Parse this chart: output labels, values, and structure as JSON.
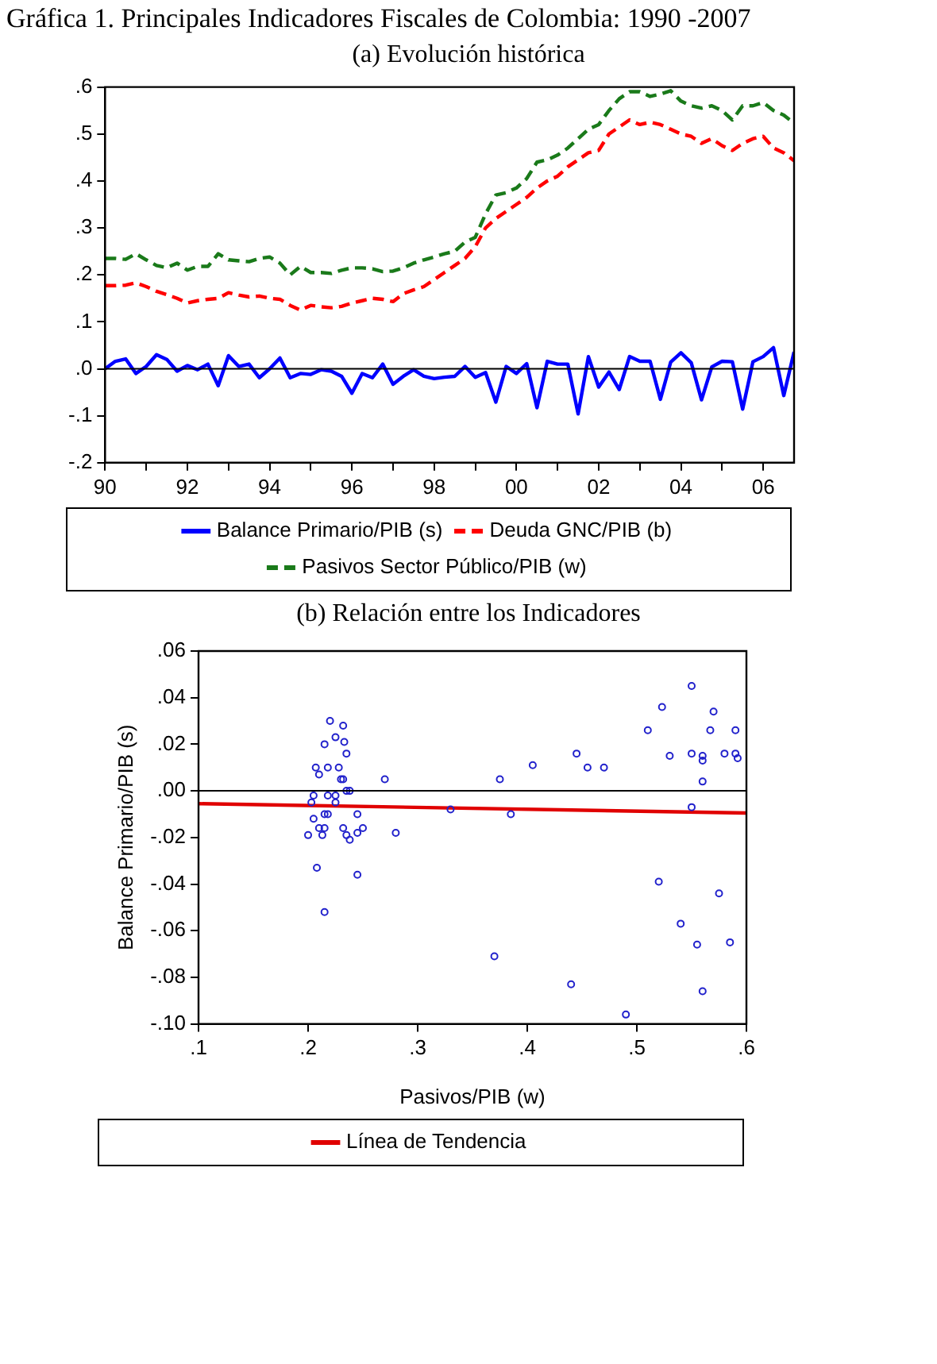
{
  "chart_data": [
    {
      "type": "line",
      "title": "Gráfica 1. Principales Indicadores Fiscales de Colombia: 1990 -2007",
      "subtitle": "(a)  Evolución histórica",
      "xlim": [
        1990,
        2006.75
      ],
      "xticks": [
        {
          "value": 1990,
          "label": "90"
        },
        {
          "value": 1991,
          "label": null
        },
        {
          "value": 1992,
          "label": "92"
        },
        {
          "value": 1993,
          "label": null
        },
        {
          "value": 1994,
          "label": "94"
        },
        {
          "value": 1995,
          "label": null
        },
        {
          "value": 1996,
          "label": "96"
        },
        {
          "value": 1997,
          "label": null
        },
        {
          "value": 1998,
          "label": "98"
        },
        {
          "value": 1999,
          "label": null
        },
        {
          "value": 2000,
          "label": "00"
        },
        {
          "value": 2001,
          "label": null
        },
        {
          "value": 2002,
          "label": "02"
        },
        {
          "value": 2003,
          "label": null
        },
        {
          "value": 2004,
          "label": "04"
        },
        {
          "value": 2005,
          "label": null
        },
        {
          "value": 2006,
          "label": "06"
        }
      ],
      "ylim": [
        -0.2,
        0.6
      ],
      "yticks": [
        {
          "value": -0.2,
          "label": "-.2"
        },
        {
          "value": -0.1,
          "label": "-.1"
        },
        {
          "value": 0,
          "label": ".0"
        },
        {
          "value": 0.1,
          "label": ".1"
        },
        {
          "value": 0.2,
          "label": ".2"
        },
        {
          "value": 0.3,
          "label": ".3"
        },
        {
          "value": 0.4,
          "label": ".4"
        },
        {
          "value": 0.5,
          "label": ".5"
        },
        {
          "value": 0.6,
          "label": ".6"
        }
      ],
      "grid": false,
      "legend": "bottom",
      "marker": "none",
      "ref_lines": [
        {
          "axis": "y",
          "value": 0,
          "color": "#000000"
        }
      ],
      "x": [
        1990,
        1990.25,
        1990.5,
        1990.75,
        1991,
        1991.25,
        1991.5,
        1991.75,
        1992,
        1992.25,
        1992.5,
        1992.75,
        1993,
        1993.25,
        1993.5,
        1993.75,
        1994,
        1994.25,
        1994.5,
        1994.75,
        1995,
        1995.25,
        1995.5,
        1995.75,
        1996,
        1996.25,
        1996.5,
        1996.75,
        1997,
        1997.25,
        1997.5,
        1997.75,
        1998,
        1998.25,
        1998.5,
        1998.75,
        1999,
        1999.25,
        1999.5,
        1999.75,
        2000,
        2000.25,
        2000.5,
        2000.75,
        2001,
        2001.25,
        2001.5,
        2001.75,
        2002,
        2002.25,
        2002.5,
        2002.75,
        2003,
        2003.25,
        2003.5,
        2003.75,
        2004,
        2004.25,
        2004.5,
        2004.75,
        2005,
        2005.25,
        2005.5,
        2005.75,
        2006,
        2006.25,
        2006.5,
        2006.75
      ],
      "series": [
        {
          "name": "Balance Primario/PIB (s)",
          "color": "#0000ff",
          "line_style": "solid",
          "values": [
            0,
            0.016,
            0.021,
            -0.01,
            0.005,
            0.03,
            0.02,
            -0.005,
            0.007,
            -0.002,
            0.01,
            -0.036,
            0.028,
            0.005,
            0.01,
            -0.019,
            0,
            0.023,
            -0.019,
            -0.01,
            -0.012,
            -0.002,
            -0.005,
            -0.016,
            -0.052,
            -0.01,
            -0.019,
            0.01,
            -0.033,
            -0.016,
            -0.002,
            -0.016,
            -0.021,
            -0.018,
            -0.016,
            0.005,
            -0.018,
            -0.008,
            -0.071,
            0.005,
            -0.01,
            0.011,
            -0.083,
            0.016,
            0.01,
            0.01,
            -0.096,
            0.026,
            -0.039,
            -0.007,
            -0.044,
            0.026,
            0.016,
            0.016,
            -0.065,
            0.014,
            0.034,
            0.013,
            -0.066,
            0.004,
            0.016,
            0.015,
            -0.086,
            0.015,
            0.026,
            0.045,
            -0.057,
            0.036
          ]
        },
        {
          "name": "Deuda GNC/PIB (b)",
          "color": "#ff0000",
          "line_style": "dashed",
          "values": [
            0.177,
            0.177,
            0.178,
            0.183,
            0.175,
            0.165,
            0.158,
            0.15,
            0.14,
            0.145,
            0.148,
            0.15,
            0.162,
            0.157,
            0.153,
            0.155,
            0.15,
            0.148,
            0.135,
            0.125,
            0.135,
            0.132,
            0.13,
            0.133,
            0.14,
            0.145,
            0.15,
            0.148,
            0.143,
            0.16,
            0.168,
            0.175,
            0.19,
            0.205,
            0.22,
            0.235,
            0.26,
            0.3,
            0.32,
            0.335,
            0.35,
            0.365,
            0.385,
            0.4,
            0.41,
            0.43,
            0.445,
            0.46,
            0.465,
            0.5,
            0.515,
            0.53,
            0.52,
            0.525,
            0.52,
            0.51,
            0.5,
            0.495,
            0.48,
            0.49,
            0.475,
            0.465,
            0.48,
            0.49,
            0.495,
            0.47,
            0.46,
            0.443
          ]
        },
        {
          "name": "Pasivos Sector Público/PIB (w)",
          "color": "#1a7a1a",
          "line_style": "dashed",
          "values": [
            0.235,
            0.235,
            0.233,
            0.245,
            0.232,
            0.22,
            0.215,
            0.225,
            0.21,
            0.218,
            0.218,
            0.245,
            0.232,
            0.23,
            0.228,
            0.235,
            0.238,
            0.225,
            0.2,
            0.218,
            0.205,
            0.205,
            0.203,
            0.21,
            0.215,
            0.215,
            0.213,
            0.207,
            0.208,
            0.215,
            0.225,
            0.232,
            0.238,
            0.245,
            0.25,
            0.27,
            0.28,
            0.33,
            0.37,
            0.375,
            0.385,
            0.405,
            0.44,
            0.445,
            0.455,
            0.47,
            0.49,
            0.51,
            0.52,
            0.55,
            0.575,
            0.59,
            0.59,
            0.58,
            0.585,
            0.592,
            0.57,
            0.56,
            0.555,
            0.56,
            0.55,
            0.53,
            0.56,
            0.56,
            0.567,
            0.55,
            0.54,
            0.523
          ]
        }
      ]
    },
    {
      "type": "scatter",
      "title": "(b) Relación entre los Indicadores",
      "xlabel": "Pasivos/PIB (w)",
      "ylabel": "Balance Primario/PIB (s)",
      "xlim": [
        0.1,
        0.6
      ],
      "xticks": [
        {
          "value": 0.1,
          "label": ".1"
        },
        {
          "value": 0.2,
          "label": ".2"
        },
        {
          "value": 0.3,
          "label": ".3"
        },
        {
          "value": 0.4,
          "label": ".4"
        },
        {
          "value": 0.5,
          "label": ".5"
        },
        {
          "value": 0.6,
          "label": ".6"
        }
      ],
      "ylim": [
        -0.1,
        0.06
      ],
      "yticks": [
        {
          "value": -0.1,
          "label": "-.10"
        },
        {
          "value": -0.08,
          "label": "-.08"
        },
        {
          "value": -0.06,
          "label": "-.06"
        },
        {
          "value": -0.04,
          "label": "-.04"
        },
        {
          "value": -0.02,
          "label": "-.02"
        },
        {
          "value": 0,
          "label": ".00"
        },
        {
          "value": 0.02,
          "label": ".02"
        },
        {
          "value": 0.04,
          "label": ".04"
        },
        {
          "value": 0.06,
          "label": ".06"
        }
      ],
      "grid": false,
      "legend": "bottom",
      "ref_lines": [
        {
          "axis": "y",
          "value": 0,
          "color": "#000000"
        }
      ],
      "series": [
        {
          "color": "#2222cc",
          "marker": "circle",
          "x": [
            0.235,
            0.235,
            0.233,
            0.245,
            0.232,
            0.22,
            0.215,
            0.225,
            0.21,
            0.218,
            0.218,
            0.245,
            0.232,
            0.23,
            0.228,
            0.235,
            0.238,
            0.225,
            0.2,
            0.218,
            0.205,
            0.205,
            0.203,
            0.21,
            0.215,
            0.215,
            0.213,
            0.207,
            0.208,
            0.215,
            0.225,
            0.232,
            0.238,
            0.245,
            0.25,
            0.27,
            0.28,
            0.33,
            0.37,
            0.375,
            0.385,
            0.405,
            0.44,
            0.445,
            0.455,
            0.47,
            0.49,
            0.51,
            0.52,
            0.55,
            0.575,
            0.59,
            0.59,
            0.58,
            0.585,
            0.592,
            0.57,
            0.56,
            0.555,
            0.56,
            0.55,
            0.53,
            0.56,
            0.56,
            0.567,
            0.55,
            0.54,
            0.523
          ],
          "values": [
            0,
            0.016,
            0.021,
            -0.01,
            0.005,
            0.03,
            0.02,
            -0.005,
            0.007,
            -0.002,
            0.01,
            -0.036,
            0.028,
            0.005,
            0.01,
            -0.019,
            0,
            0.023,
            -0.019,
            -0.01,
            -0.012,
            -0.002,
            -0.005,
            -0.016,
            -0.052,
            -0.01,
            -0.019,
            0.01,
            -0.033,
            -0.016,
            -0.002,
            -0.016,
            -0.021,
            -0.018,
            -0.016,
            0.005,
            -0.018,
            -0.008,
            -0.071,
            0.005,
            -0.01,
            0.011,
            -0.083,
            0.016,
            0.01,
            0.01,
            -0.096,
            0.026,
            -0.039,
            -0.007,
            -0.044,
            0.026,
            0.016,
            0.016,
            -0.065,
            0.014,
            0.034,
            0.013,
            -0.066,
            0.004,
            0.016,
            0.015,
            -0.086,
            0.015,
            0.026,
            0.045,
            -0.057,
            0.036
          ]
        },
        {
          "type": "line",
          "name": "Línea de Tendencia",
          "color": "#e00000",
          "line_style": "solid",
          "marker": "none",
          "x": [
            0.1,
            0.6
          ],
          "values": [
            -0.0055,
            -0.0095
          ]
        }
      ]
    }
  ]
}
